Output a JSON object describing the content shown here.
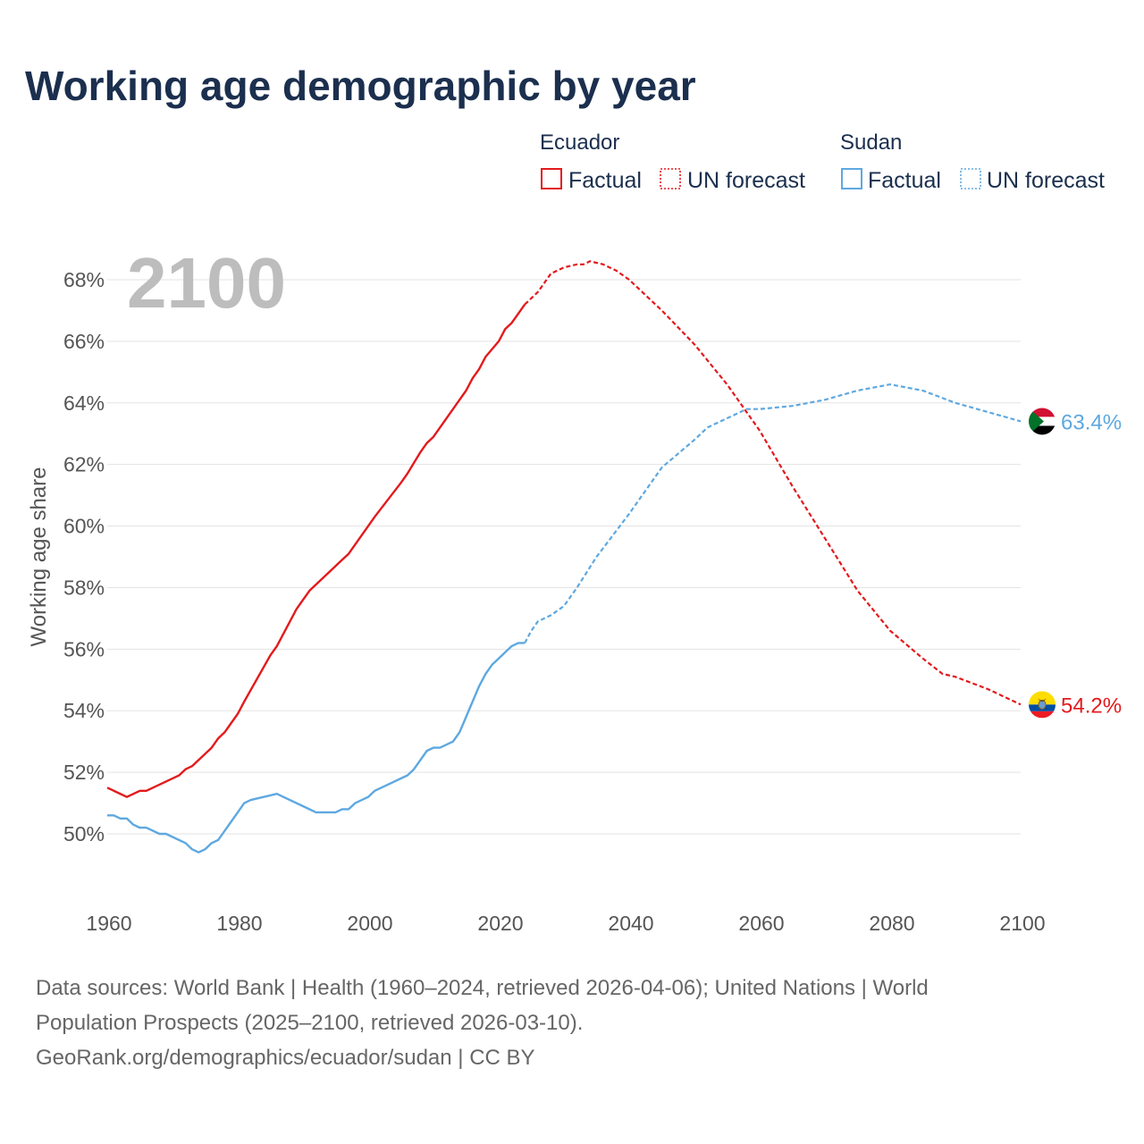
{
  "title": "Working age demographic by year",
  "big_year": "2100",
  "legend": {
    "groups": [
      {
        "name": "Ecuador",
        "factual_label": "Factual",
        "forecast_label": "UN forecast",
        "color": "#e31a1c"
      },
      {
        "name": "Sudan",
        "factual_label": "Factual",
        "forecast_label": "UN forecast",
        "color": "#5ea8e0"
      }
    ]
  },
  "end_labels": {
    "sudan": "63.4%",
    "ecuador": "54.2%"
  },
  "source": {
    "line1": "Data sources: World Bank | Health (1960–2024, retrieved 2026-04-06); United Nations | World",
    "line2": "Population Prospects (2025–2100, retrieved 2026-03-10).",
    "line3": "GeoRank.org/demographics/ecuador/sudan | CC BY"
  },
  "flags": {
    "sudan": "sudan-flag-icon",
    "ecuador": "ecuador-flag-icon"
  },
  "chart_data": {
    "type": "line",
    "title": "Working age demographic by year",
    "xlabel": "",
    "ylabel": "Working age share",
    "xlim": [
      1960,
      2100
    ],
    "ylim": [
      48.5,
      69.5
    ],
    "x_ticks": [
      1960,
      1980,
      2000,
      2020,
      2040,
      2060,
      2080,
      2100
    ],
    "y_ticks": [
      50,
      52,
      54,
      56,
      58,
      60,
      62,
      64,
      66,
      68
    ],
    "y_tick_labels": [
      "50%",
      "52%",
      "54%",
      "56%",
      "58%",
      "60%",
      "62%",
      "64%",
      "66%",
      "68%"
    ],
    "x_tick_labels": [
      "1960",
      "1980",
      "2000",
      "2020",
      "2040",
      "2060",
      "2080",
      "2100"
    ],
    "grid": true,
    "factual_end_year": 2024,
    "series": [
      {
        "name": "Ecuador",
        "color": "#e31a1c",
        "x": [
          1960,
          1963,
          1965,
          1966,
          1971,
          1972,
          1973,
          1976,
          1977,
          1978,
          1980,
          1981,
          1985,
          1986,
          1988,
          1989,
          1990,
          1991,
          1996,
          1997,
          2000,
          2001,
          2005,
          2006,
          2008,
          2009,
          2010,
          2014,
          2015,
          2016,
          2017,
          2018,
          2020,
          2021,
          2022,
          2023,
          2024,
          2026,
          2028,
          2030,
          2032,
          2033,
          2034,
          2036,
          2038,
          2040,
          2045,
          2050,
          2055,
          2060,
          2065,
          2070,
          2075,
          2080,
          2085,
          2088,
          2090,
          2095,
          2100
        ],
        "values": [
          51.5,
          51.2,
          51.4,
          51.4,
          51.9,
          52.1,
          52.2,
          52.8,
          53.1,
          53.3,
          53.9,
          54.3,
          55.8,
          56.1,
          56.9,
          57.3,
          57.6,
          57.9,
          58.9,
          59.1,
          60.0,
          60.3,
          61.4,
          61.7,
          62.4,
          62.7,
          62.9,
          64.1,
          64.4,
          64.8,
          65.1,
          65.5,
          66.0,
          66.4,
          66.6,
          66.9,
          67.2,
          67.6,
          68.2,
          68.4,
          68.5,
          68.5,
          68.6,
          68.5,
          68.3,
          68.0,
          67.0,
          65.9,
          64.6,
          63.1,
          61.3,
          59.6,
          57.9,
          56.6,
          55.7,
          55.2,
          55.1,
          54.7,
          54.2
        ]
      },
      {
        "name": "Sudan",
        "color": "#5ea8e0",
        "x": [
          1960,
          1961,
          1962,
          1963,
          1964,
          1965,
          1966,
          1968,
          1969,
          1972,
          1973,
          1974,
          1975,
          1976,
          1977,
          1980,
          1981,
          1982,
          1986,
          1987,
          1990,
          1992,
          1995,
          1996,
          1997,
          1998,
          2000,
          2001,
          2003,
          2005,
          2006,
          2007,
          2008,
          2009,
          2010,
          2011,
          2013,
          2014,
          2015,
          2016,
          2017,
          2018,
          2019,
          2020,
          2021,
          2022,
          2023,
          2024,
          2025,
          2026,
          2028,
          2030,
          2032,
          2035,
          2040,
          2045,
          2050,
          2052,
          2055,
          2058,
          2060,
          2065,
          2070,
          2075,
          2080,
          2085,
          2090,
          2095,
          2100
        ],
        "values": [
          50.6,
          50.6,
          50.5,
          50.5,
          50.3,
          50.2,
          50.2,
          50.0,
          50.0,
          49.7,
          49.5,
          49.4,
          49.5,
          49.7,
          49.8,
          50.7,
          51.0,
          51.1,
          51.3,
          51.2,
          50.9,
          50.7,
          50.7,
          50.8,
          50.8,
          51.0,
          51.2,
          51.4,
          51.6,
          51.8,
          51.9,
          52.1,
          52.4,
          52.7,
          52.8,
          52.8,
          53.0,
          53.3,
          53.8,
          54.3,
          54.8,
          55.2,
          55.5,
          55.7,
          55.9,
          56.1,
          56.2,
          56.2,
          56.6,
          56.9,
          57.1,
          57.4,
          58.0,
          59.0,
          60.4,
          61.9,
          62.8,
          63.2,
          63.5,
          63.8,
          63.8,
          63.9,
          64.1,
          64.4,
          64.6,
          64.4,
          64.0,
          63.7,
          63.4
        ]
      }
    ]
  }
}
